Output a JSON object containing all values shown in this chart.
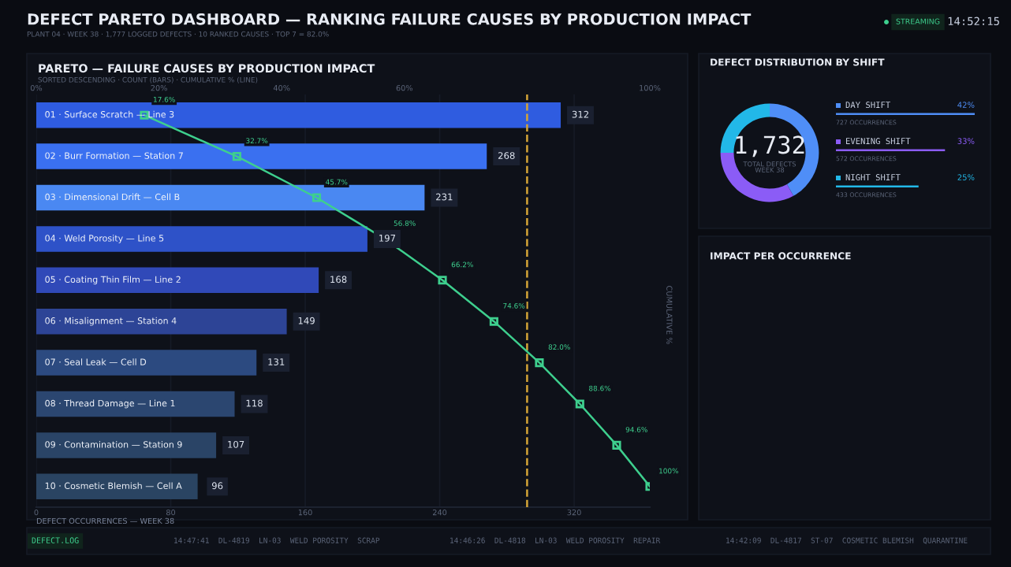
{
  "chart_data": [
    {
      "type": "bar",
      "orientation": "horizontal",
      "title": "PARETO — FAILURE CAUSES BY PRODUCTION IMPACT",
      "subtitle": "SORTED DESCENDING · COUNT (BARS) · CUMULATIVE % (LINE)",
      "xlabel": "DEFECT OCCURRENCES — WEEK 38",
      "y2label": "CUMULATIVE %",
      "categories": [
        "01 · Surface Scratch — Line 3",
        "02 · Burr Formation — Station 7",
        "03 · Dimensional Drift — Cell B",
        "04 · Weld Porosity — Line 5",
        "05 · Coating Thin Film — Line 2",
        "06 · Misalignment — Station 4",
        "07 · Seal Leak — Cell D",
        "08 · Thread Damage — Line 1",
        "09 · Contamination — Station 9",
        "10 · Cosmetic Blemish — Cell A"
      ],
      "series": [
        {
          "type": "bar",
          "values": [
            312,
            268,
            231,
            197,
            168,
            149,
            131,
            118,
            107,
            96
          ],
          "colors": [
            "#2f5ce0",
            "#3a70f0",
            "#4a88f2",
            "#2e52c8",
            "#3049b8",
            "#2d4496",
            "#2c4a80",
            "#2b4670",
            "#2a4466",
            "#2a4462"
          ],
          "value_labels": [
            "312",
            "268",
            "231",
            "197",
            "168",
            "149",
            "131",
            "118",
            "107",
            "96"
          ]
        },
        {
          "type": "line",
          "axis": "x2",
          "color": "#3ecf8e",
          "marker": "square",
          "values": [
            17.6,
            32.7,
            45.7,
            56.8,
            66.2,
            74.6,
            82.0,
            88.6,
            94.6,
            100.0
          ],
          "value_labels": [
            "17.6%",
            "32.7%",
            "45.7%",
            "56.8%",
            "66.2%",
            "74.6%",
            "82.0%",
            "88.6%",
            "94.6%",
            "100%"
          ]
        }
      ],
      "xlim": [
        0,
        365
      ],
      "xticks": [
        0,
        80,
        160,
        240,
        320
      ],
      "x2lim": [
        0,
        100
      ],
      "x2ticks": [
        {
          "value": 0,
          "label": "0%"
        },
        {
          "value": 20,
          "label": "20%"
        },
        {
          "value": 40,
          "label": "40%"
        },
        {
          "value": 60,
          "label": "60%"
        },
        {
          "value": 100,
          "label": "100%"
        }
      ],
      "ref_lines": [
        {
          "axis": "x2",
          "value": 80,
          "color": "#d4a537",
          "line_style": "dashed"
        }
      ],
      "grid": "x"
    },
    {
      "type": "donut",
      "title": "DEFECT DISTRIBUTION BY SHIFT",
      "categories": [
        "DAY SHIFT",
        "EVENING SHIFT",
        "NIGHT SHIFT"
      ],
      "values": [
        42,
        33,
        25
      ],
      "colors": [
        "#4f8ef7",
        "#8b5cf6",
        "#22b8e8"
      ],
      "value_labels": [
        "42%",
        "33%",
        "25%"
      ],
      "legend": "right",
      "annotations": [
        "1,732",
        "TOTAL DEFECTS",
        "WEEK 38",
        "727 OCCURRENCES",
        "572 OCCURRENCES",
        "433 OCCURRENCES"
      ]
    },
    {
      "type": "other",
      "title": "IMPACT PER OCCURRENCE"
    },
    {
      "type": "other",
      "title": "DEFECT PARETO DASHBOARD — RANKING FAILURE CAUSES BY PRODUCTION IMPACT",
      "subtitle": "PLANT 04 · WEEK 38 · 1,777 LOGGED DEFECTS · 10 RANKED CAUSES · TOP 7 = 82.0%",
      "annotations": [
        "STREAMING",
        "14:52:15",
        "DEFECT.LOG",
        "14:47:41  DL-4819  LN-03  WELD POROSITY  SCRAP",
        "14:46:26  DL-4818  LN-03  WELD POROSITY  REPAIR",
        "14:42:09  DL-4817  ST-07  COSMETIC BLEMISH  QUARANTINE"
      ]
    }
  ]
}
